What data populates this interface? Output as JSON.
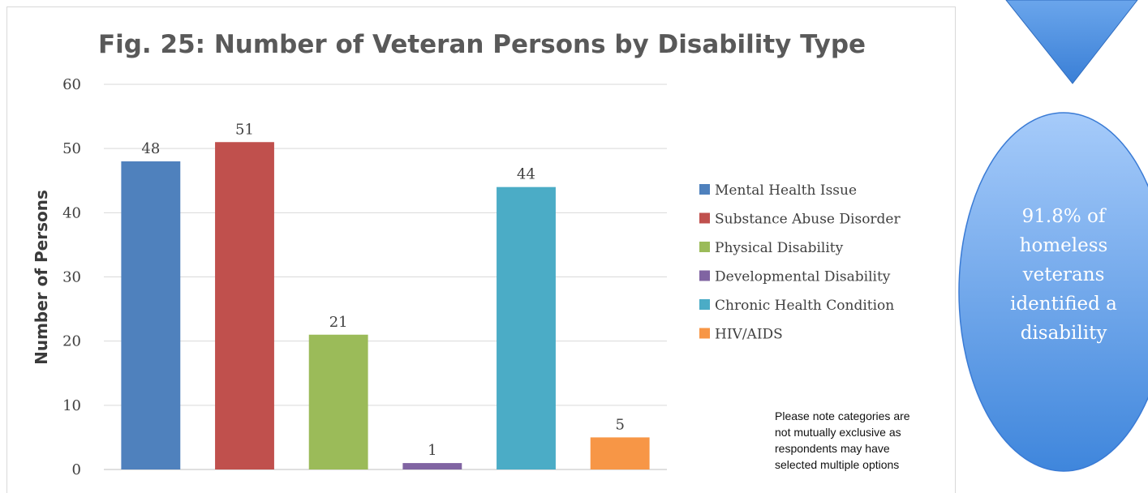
{
  "chart_data": {
    "type": "bar",
    "title": "Fig. 25: Number of Veteran Persons by Disability Type",
    "xlabel": "",
    "ylabel": "Number of Persons",
    "ylim": [
      0,
      60
    ],
    "yticks": [
      0,
      10,
      20,
      30,
      40,
      50,
      60
    ],
    "grid": true,
    "legend_position": "right",
    "categories": [
      "Mental Health Issue",
      "Substance Abuse Disorder",
      "Physical Disability",
      "Developmental Disability",
      "Chronic Health Condition",
      "HIV/AIDS"
    ],
    "values": [
      48,
      51,
      21,
      1,
      44,
      5
    ],
    "colors": [
      "#4f81bd",
      "#c0504d",
      "#9bbb59",
      "#8064a2",
      "#4bacc6",
      "#f79646"
    ],
    "data_labels": [
      "48",
      "51",
      "21",
      "1",
      "44",
      "5"
    ]
  },
  "note_lines": [
    "Please note categories are",
    "not mutually exclusive as",
    "respondents may have",
    "selected multiple options"
  ],
  "callout": {
    "lines": [
      "91.8% of",
      "homeless",
      "veterans",
      "identified a",
      "disability"
    ],
    "color": "#6ea6ec"
  }
}
